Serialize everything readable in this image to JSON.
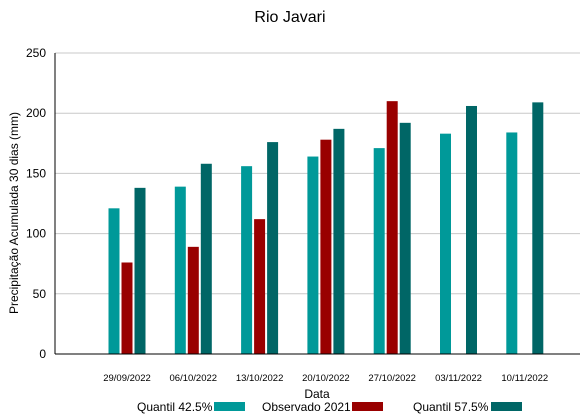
{
  "chart_data": {
    "type": "bar",
    "title": "Rio Javari",
    "xlabel": "Data",
    "ylabel": "Precipitação Acumulada 30 dias (mm)",
    "ylim": [
      0,
      250
    ],
    "yticks": [
      0,
      50,
      100,
      150,
      200,
      250
    ],
    "grid": true,
    "legend_position": "bottom",
    "categories": [
      "29/09/2022",
      "06/10/2022",
      "13/10/2022",
      "20/10/2022",
      "27/10/2022",
      "03/11/2022",
      "10/11/2022"
    ],
    "series": [
      {
        "name": "Quantil 42.5%",
        "color": "#009999",
        "values": [
          121,
          139,
          156,
          164,
          171,
          183,
          184
        ]
      },
      {
        "name": "Observado 2021",
        "color": "#990000",
        "values": [
          76,
          89,
          112,
          178,
          210,
          null,
          null
        ]
      },
      {
        "name": "Quantil 57.5%",
        "color": "#006666",
        "values": [
          138,
          158,
          176,
          187,
          192,
          206,
          209
        ]
      }
    ]
  }
}
